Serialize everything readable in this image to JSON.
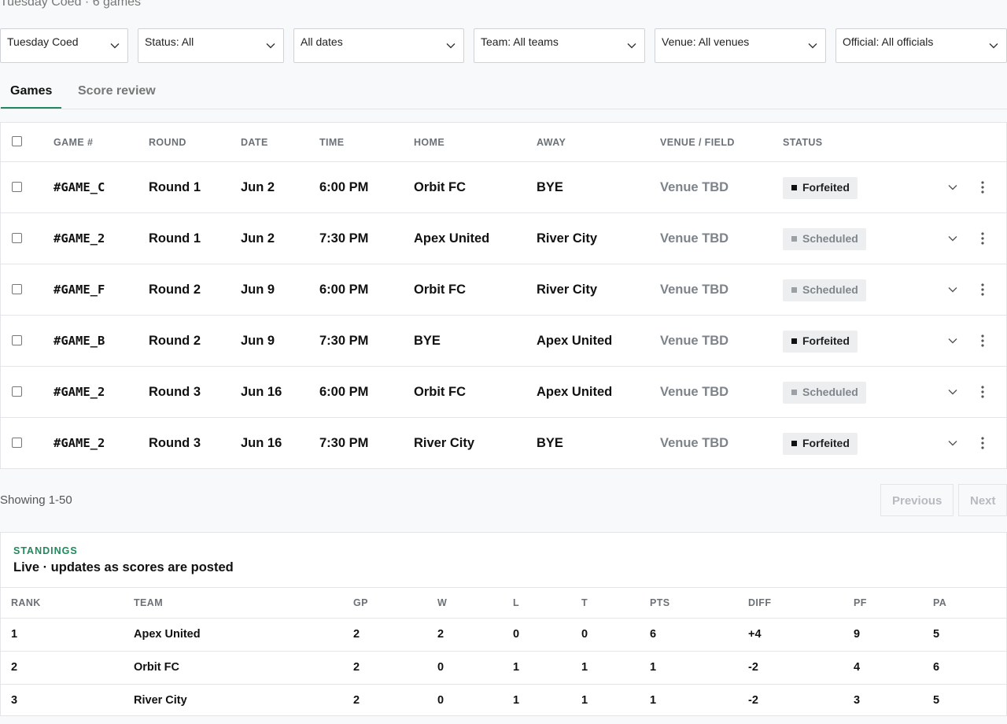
{
  "header": {
    "subtitle": "Tuesday Coed · 6 games"
  },
  "filters": [
    {
      "label": "Tuesday Coed"
    },
    {
      "label": "Status: All"
    },
    {
      "label": "All dates"
    },
    {
      "label": "Team: All teams"
    },
    {
      "label": "Venue: All venues"
    },
    {
      "label": "Official: All officials"
    }
  ],
  "tabs": [
    {
      "label": "Games",
      "active": true
    },
    {
      "label": "Score review",
      "active": false
    }
  ],
  "games": {
    "columns": [
      "GAME #",
      "ROUND",
      "DATE",
      "TIME",
      "HOME",
      "AWAY",
      "VENUE / FIELD",
      "STATUS"
    ],
    "rows": [
      {
        "game": "#GAME_C",
        "round": "Round 1",
        "date": "Jun 2",
        "time": "6:00 PM",
        "home": "Orbit FC",
        "away": "BYE",
        "venue": "Venue TBD",
        "status": "Forfeited"
      },
      {
        "game": "#GAME_2",
        "round": "Round 1",
        "date": "Jun 2",
        "time": "7:30 PM",
        "home": "Apex United",
        "away": "River City",
        "venue": "Venue TBD",
        "status": "Scheduled"
      },
      {
        "game": "#GAME_F",
        "round": "Round 2",
        "date": "Jun 9",
        "time": "6:00 PM",
        "home": "Orbit FC",
        "away": "River City",
        "venue": "Venue TBD",
        "status": "Scheduled"
      },
      {
        "game": "#GAME_B",
        "round": "Round 2",
        "date": "Jun 9",
        "time": "7:30 PM",
        "home": "BYE",
        "away": "Apex United",
        "venue": "Venue TBD",
        "status": "Forfeited"
      },
      {
        "game": "#GAME_2",
        "round": "Round 3",
        "date": "Jun 16",
        "time": "6:00 PM",
        "home": "Orbit FC",
        "away": "Apex United",
        "venue": "Venue TBD",
        "status": "Scheduled"
      },
      {
        "game": "#GAME_2",
        "round": "Round 3",
        "date": "Jun 16",
        "time": "7:30 PM",
        "home": "River City",
        "away": "BYE",
        "venue": "Venue TBD",
        "status": "Forfeited"
      }
    ]
  },
  "pagination": {
    "showing": "Showing 1-50",
    "previous": "Previous",
    "next": "Next"
  },
  "standings": {
    "label": "STANDINGS",
    "title": "Live · updates as scores are posted",
    "columns": [
      "RANK",
      "TEAM",
      "GP",
      "W",
      "L",
      "T",
      "PTS",
      "DIFF",
      "PF",
      "PA"
    ],
    "rows": [
      {
        "rank": "1",
        "team": "Apex United",
        "gp": "2",
        "w": "2",
        "l": "0",
        "t": "0",
        "pts": "6",
        "diff": "+4",
        "pf": "9",
        "pa": "5"
      },
      {
        "rank": "2",
        "team": "Orbit FC",
        "gp": "2",
        "w": "0",
        "l": "1",
        "t": "1",
        "pts": "1",
        "diff": "-2",
        "pf": "4",
        "pa": "6"
      },
      {
        "rank": "3",
        "team": "River City",
        "gp": "2",
        "w": "0",
        "l": "1",
        "t": "1",
        "pts": "1",
        "diff": "-2",
        "pf": "3",
        "pa": "5"
      }
    ]
  },
  "colors": {
    "accent": "#1f8a5b",
    "forfeit_dot": "#111111",
    "scheduled_dot": "#9aa0a6"
  },
  "icons": {
    "filter_chevron": "chevron-down-icon",
    "row_expand": "chevron-down-icon",
    "row_menu": "more-vertical-icon"
  }
}
